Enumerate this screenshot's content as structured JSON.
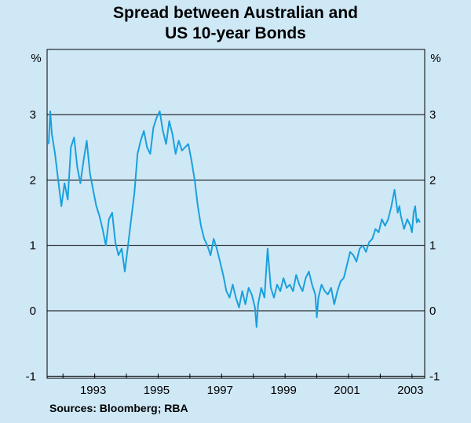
{
  "chart_data": {
    "type": "line",
    "title_lines": [
      "Spread between Australian and",
      "US 10-year Bonds"
    ],
    "yunit_left": "%",
    "yunit_right": "%",
    "ylim": [
      -1,
      4
    ],
    "yticks": [
      3,
      2,
      1,
      0,
      -1
    ],
    "xlim": [
      1991.5,
      2003.4
    ],
    "xtick_labels": [
      "1993",
      "1995",
      "1997",
      "1999",
      "2001",
      "2003"
    ],
    "source": "Sources: Bloomberg; RBA",
    "line_color": "#1aa0dc",
    "series": [
      {
        "x": [
          1991.55,
          1991.6,
          1991.65,
          1991.75,
          1991.85,
          1991.95,
          1992.05,
          1992.15,
          1992.25,
          1992.35,
          1992.45,
          1992.55,
          1992.65,
          1992.75,
          1992.85,
          1992.95,
          1993.05,
          1993.15,
          1993.25,
          1993.35,
          1993.45,
          1993.55,
          1993.65,
          1993.75,
          1993.85,
          1993.95,
          1994.05,
          1994.15,
          1994.25,
          1994.35,
          1994.45,
          1994.55,
          1994.65,
          1994.75,
          1994.85,
          1994.95,
          1995.05,
          1995.15,
          1995.25,
          1995.35,
          1995.45,
          1995.55,
          1995.65,
          1995.75,
          1995.85,
          1995.95,
          1996.05,
          1996.15,
          1996.25,
          1996.35,
          1996.45,
          1996.55,
          1996.65,
          1996.75,
          1996.85,
          1996.95,
          1997.05,
          1997.15,
          1997.25,
          1997.35,
          1997.45,
          1997.55,
          1997.65,
          1997.75,
          1997.85,
          1997.95,
          1998.05,
          1998.1,
          1998.15,
          1998.25,
          1998.35,
          1998.45,
          1998.55,
          1998.65,
          1998.75,
          1998.85,
          1998.95,
          1999.05,
          1999.15,
          1999.25,
          1999.35,
          1999.45,
          1999.55,
          1999.65,
          1999.75,
          1999.85,
          1999.95,
          2000.0,
          2000.05,
          2000.15,
          2000.25,
          2000.35,
          2000.45,
          2000.55,
          2000.65,
          2000.75,
          2000.85,
          2000.95,
          2001.05,
          2001.15,
          2001.25,
          2001.35,
          2001.45,
          2001.55,
          2001.65,
          2001.75,
          2001.85,
          2001.95,
          2002.05,
          2002.15,
          2002.25,
          2002.35,
          2002.45,
          2002.55,
          2002.6,
          2002.65,
          2002.75,
          2002.85,
          2002.95,
          2003.0,
          2003.05,
          2003.1,
          2003.15,
          2003.2,
          2003.25
        ],
        "values": [
          2.55,
          3.05,
          2.7,
          2.4,
          2.0,
          1.6,
          1.95,
          1.7,
          2.5,
          2.65,
          2.2,
          1.95,
          2.3,
          2.6,
          2.1,
          1.85,
          1.6,
          1.45,
          1.25,
          1.0,
          1.4,
          1.5,
          1.05,
          0.85,
          0.95,
          0.6,
          1.0,
          1.4,
          1.8,
          2.4,
          2.6,
          2.75,
          2.5,
          2.4,
          2.8,
          2.95,
          3.05,
          2.75,
          2.55,
          2.9,
          2.7,
          2.4,
          2.6,
          2.45,
          2.5,
          2.55,
          2.3,
          2.0,
          1.6,
          1.3,
          1.1,
          1.0,
          0.85,
          1.1,
          0.95,
          0.75,
          0.55,
          0.3,
          0.2,
          0.4,
          0.2,
          0.05,
          0.3,
          0.1,
          0.35,
          0.25,
          0.05,
          -0.25,
          0.1,
          0.35,
          0.2,
          0.95,
          0.35,
          0.2,
          0.4,
          0.3,
          0.5,
          0.35,
          0.4,
          0.3,
          0.55,
          0.4,
          0.3,
          0.5,
          0.6,
          0.4,
          0.25,
          -0.1,
          0.2,
          0.4,
          0.3,
          0.25,
          0.35,
          0.1,
          0.3,
          0.45,
          0.5,
          0.7,
          0.9,
          0.85,
          0.75,
          0.95,
          1.0,
          0.9,
          1.05,
          1.1,
          1.25,
          1.2,
          1.4,
          1.3,
          1.4,
          1.6,
          1.85,
          1.5,
          1.6,
          1.45,
          1.25,
          1.4,
          1.3,
          1.2,
          1.5,
          1.6,
          1.35,
          1.4,
          1.35
        ]
      }
    ]
  }
}
